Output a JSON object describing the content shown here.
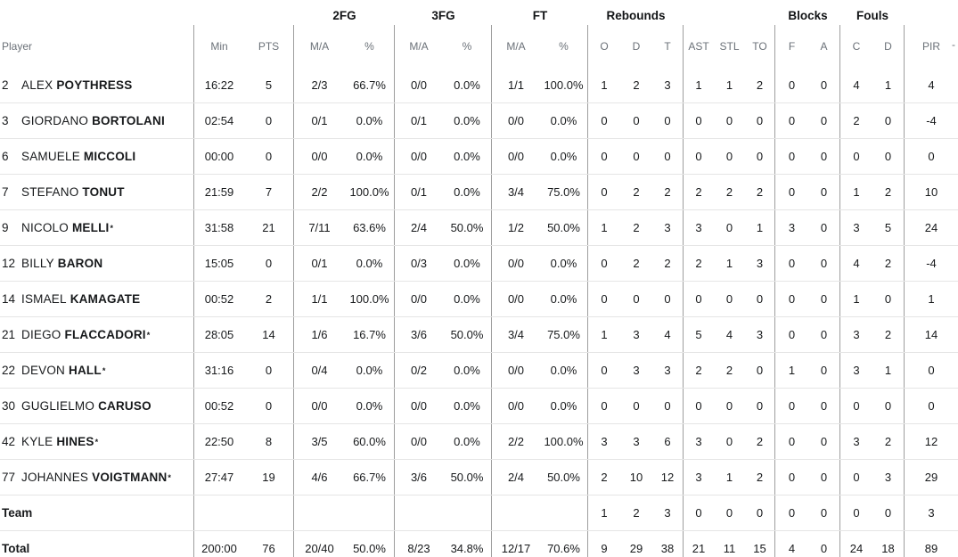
{
  "colors": {
    "background": "#ffffff",
    "body_text": "#17191b",
    "header_text": "#6b7178",
    "column_divider": "#9e9e9e",
    "row_divider": "#e5e5e5"
  },
  "table": {
    "groups": {
      "fg2": "2FG",
      "fg3": "3FG",
      "ft": "FT",
      "reb": "Rebounds",
      "blocks": "Blocks",
      "fouls": "Fouls"
    },
    "header": {
      "player": "Player",
      "min": "Min",
      "pts": "PTS",
      "ma": "M/A",
      "pct": "%",
      "o": "O",
      "d": "D",
      "t": "T",
      "ast": "AST",
      "stl": "STL",
      "to": "TO",
      "f": "F",
      "a": "A",
      "c": "C",
      "d2": "D",
      "pir": "PIR",
      "next_fragment": "-"
    },
    "starter_mark": "*",
    "rows": [
      {
        "num": "2",
        "first": "ALEX",
        "last": "POYTHRESS",
        "starter": false,
        "min": "16:22",
        "pts": "5",
        "fg2_ma": "2/3",
        "fg2_pct": "66.7%",
        "fg3_ma": "0/0",
        "fg3_pct": "0.0%",
        "ft_ma": "1/1",
        "ft_pct": "100.0%",
        "o": "1",
        "d": "2",
        "t": "3",
        "ast": "1",
        "stl": "1",
        "to": "2",
        "f": "0",
        "a": "0",
        "c": "4",
        "d2": "1",
        "pir": "4"
      },
      {
        "num": "3",
        "first": "GIORDANO",
        "last": "BORTOLANI",
        "starter": false,
        "min": "02:54",
        "pts": "0",
        "fg2_ma": "0/1",
        "fg2_pct": "0.0%",
        "fg3_ma": "0/1",
        "fg3_pct": "0.0%",
        "ft_ma": "0/0",
        "ft_pct": "0.0%",
        "o": "0",
        "d": "0",
        "t": "0",
        "ast": "0",
        "stl": "0",
        "to": "0",
        "f": "0",
        "a": "0",
        "c": "2",
        "d2": "0",
        "pir": "-4"
      },
      {
        "num": "6",
        "first": "SAMUELE",
        "last": "MICCOLI",
        "starter": false,
        "min": "00:00",
        "pts": "0",
        "fg2_ma": "0/0",
        "fg2_pct": "0.0%",
        "fg3_ma": "0/0",
        "fg3_pct": "0.0%",
        "ft_ma": "0/0",
        "ft_pct": "0.0%",
        "o": "0",
        "d": "0",
        "t": "0",
        "ast": "0",
        "stl": "0",
        "to": "0",
        "f": "0",
        "a": "0",
        "c": "0",
        "d2": "0",
        "pir": "0"
      },
      {
        "num": "7",
        "first": "STEFANO",
        "last": "TONUT",
        "starter": false,
        "min": "21:59",
        "pts": "7",
        "fg2_ma": "2/2",
        "fg2_pct": "100.0%",
        "fg3_ma": "0/1",
        "fg3_pct": "0.0%",
        "ft_ma": "3/4",
        "ft_pct": "75.0%",
        "o": "0",
        "d": "2",
        "t": "2",
        "ast": "2",
        "stl": "2",
        "to": "2",
        "f": "0",
        "a": "0",
        "c": "1",
        "d2": "2",
        "pir": "10"
      },
      {
        "num": "9",
        "first": "NICOLO",
        "last": "MELLI",
        "starter": true,
        "min": "31:58",
        "pts": "21",
        "fg2_ma": "7/11",
        "fg2_pct": "63.6%",
        "fg3_ma": "2/4",
        "fg3_pct": "50.0%",
        "ft_ma": "1/2",
        "ft_pct": "50.0%",
        "o": "1",
        "d": "2",
        "t": "3",
        "ast": "3",
        "stl": "0",
        "to": "1",
        "f": "3",
        "a": "0",
        "c": "3",
        "d2": "5",
        "pir": "24"
      },
      {
        "num": "12",
        "first": "BILLY",
        "last": "BARON",
        "starter": false,
        "min": "15:05",
        "pts": "0",
        "fg2_ma": "0/1",
        "fg2_pct": "0.0%",
        "fg3_ma": "0/3",
        "fg3_pct": "0.0%",
        "ft_ma": "0/0",
        "ft_pct": "0.0%",
        "o": "0",
        "d": "2",
        "t": "2",
        "ast": "2",
        "stl": "1",
        "to": "3",
        "f": "0",
        "a": "0",
        "c": "4",
        "d2": "2",
        "pir": "-4"
      },
      {
        "num": "14",
        "first": "ISMAEL",
        "last": "KAMAGATE",
        "starter": false,
        "min": "00:52",
        "pts": "2",
        "fg2_ma": "1/1",
        "fg2_pct": "100.0%",
        "fg3_ma": "0/0",
        "fg3_pct": "0.0%",
        "ft_ma": "0/0",
        "ft_pct": "0.0%",
        "o": "0",
        "d": "0",
        "t": "0",
        "ast": "0",
        "stl": "0",
        "to": "0",
        "f": "0",
        "a": "0",
        "c": "1",
        "d2": "0",
        "pir": "1"
      },
      {
        "num": "21",
        "first": "DIEGO",
        "last": "FLACCADORI",
        "starter": true,
        "min": "28:05",
        "pts": "14",
        "fg2_ma": "1/6",
        "fg2_pct": "16.7%",
        "fg3_ma": "3/6",
        "fg3_pct": "50.0%",
        "ft_ma": "3/4",
        "ft_pct": "75.0%",
        "o": "1",
        "d": "3",
        "t": "4",
        "ast": "5",
        "stl": "4",
        "to": "3",
        "f": "0",
        "a": "0",
        "c": "3",
        "d2": "2",
        "pir": "14"
      },
      {
        "num": "22",
        "first": "DEVON",
        "last": "HALL",
        "starter": true,
        "min": "31:16",
        "pts": "0",
        "fg2_ma": "0/4",
        "fg2_pct": "0.0%",
        "fg3_ma": "0/2",
        "fg3_pct": "0.0%",
        "ft_ma": "0/0",
        "ft_pct": "0.0%",
        "o": "0",
        "d": "3",
        "t": "3",
        "ast": "2",
        "stl": "2",
        "to": "0",
        "f": "1",
        "a": "0",
        "c": "3",
        "d2": "1",
        "pir": "0"
      },
      {
        "num": "30",
        "first": "GUGLIELMO",
        "last": "CARUSO",
        "starter": false,
        "min": "00:52",
        "pts": "0",
        "fg2_ma": "0/0",
        "fg2_pct": "0.0%",
        "fg3_ma": "0/0",
        "fg3_pct": "0.0%",
        "ft_ma": "0/0",
        "ft_pct": "0.0%",
        "o": "0",
        "d": "0",
        "t": "0",
        "ast": "0",
        "stl": "0",
        "to": "0",
        "f": "0",
        "a": "0",
        "c": "0",
        "d2": "0",
        "pir": "0"
      },
      {
        "num": "42",
        "first": "KYLE",
        "last": "HINES",
        "starter": true,
        "min": "22:50",
        "pts": "8",
        "fg2_ma": "3/5",
        "fg2_pct": "60.0%",
        "fg3_ma": "0/0",
        "fg3_pct": "0.0%",
        "ft_ma": "2/2",
        "ft_pct": "100.0%",
        "o": "3",
        "d": "3",
        "t": "6",
        "ast": "3",
        "stl": "0",
        "to": "2",
        "f": "0",
        "a": "0",
        "c": "3",
        "d2": "2",
        "pir": "12"
      },
      {
        "num": "77",
        "first": "JOHANNES",
        "last": "VOIGTMANN",
        "starter": true,
        "min": "27:47",
        "pts": "19",
        "fg2_ma": "4/6",
        "fg2_pct": "66.7%",
        "fg3_ma": "3/6",
        "fg3_pct": "50.0%",
        "ft_ma": "2/4",
        "ft_pct": "50.0%",
        "o": "2",
        "d": "10",
        "t": "12",
        "ast": "3",
        "stl": "1",
        "to": "2",
        "f": "0",
        "a": "0",
        "c": "0",
        "d2": "3",
        "pir": "29"
      },
      {
        "label": "Team",
        "min": "",
        "pts": "",
        "fg2_ma": "",
        "fg2_pct": "",
        "fg3_ma": "",
        "fg3_pct": "",
        "ft_ma": "",
        "ft_pct": "",
        "o": "1",
        "d": "2",
        "t": "3",
        "ast": "0",
        "stl": "0",
        "to": "0",
        "f": "0",
        "a": "0",
        "c": "0",
        "d2": "0",
        "pir": "3"
      },
      {
        "label": "Total",
        "min": "200:00",
        "pts": "76",
        "fg2_ma": "20/40",
        "fg2_pct": "50.0%",
        "fg3_ma": "8/23",
        "fg3_pct": "34.8%",
        "ft_ma": "12/17",
        "ft_pct": "70.6%",
        "o": "9",
        "d": "29",
        "t": "38",
        "ast": "21",
        "stl": "11",
        "to": "15",
        "f": "4",
        "a": "0",
        "c": "24",
        "d2": "18",
        "pir": "89"
      }
    ]
  }
}
